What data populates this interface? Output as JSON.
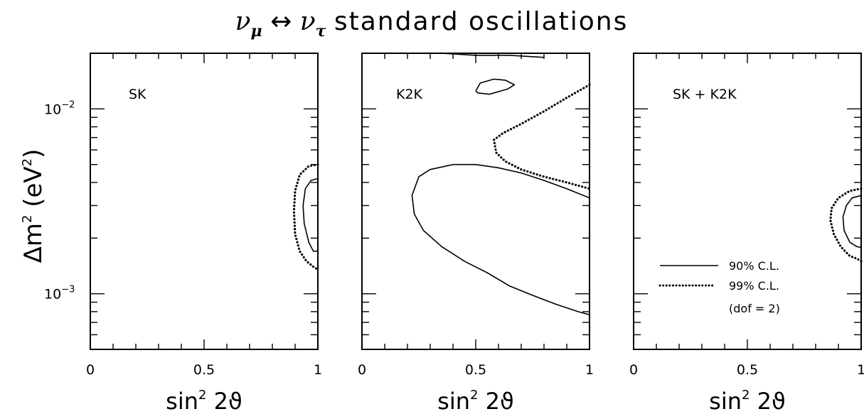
{
  "title": {
    "nu1": "ν",
    "sub1": "μ",
    "arrow": "↔",
    "nu2": "ν",
    "sub2": "τ",
    "rest": "standard oscillations"
  },
  "ylabel": {
    "delta": "Δm",
    "sup": "2",
    "unit_open": " (eV",
    "unit_sup": "2",
    "unit_close": ")"
  },
  "xlabel": {
    "base": "sin",
    "sup": "2",
    "arg": "2ϑ"
  },
  "legend": {
    "solid": "90% C.L.",
    "dotted": "99% C.L.",
    "note": "(dof = 2)"
  },
  "chart_data": [
    {
      "type": "line",
      "panel_label": "SK",
      "x_ticks": [
        "0",
        "0.5",
        "1"
      ],
      "y_tick_labels": [
        {
          "base": "10",
          "exp": "−2",
          "value": 0.01
        },
        {
          "base": "10",
          "exp": "−3",
          "value": 0.001
        }
      ],
      "xlim": [
        0,
        1
      ],
      "ylim": [
        0.0005,
        0.02
      ],
      "yscale": "log",
      "series": [
        {
          "style": "solid",
          "x": [
            1.0,
            0.97,
            0.945,
            0.935,
            0.94,
            0.96,
            0.98,
            1.0
          ],
          "y": [
            0.0042,
            0.0041,
            0.0037,
            0.003,
            0.0024,
            0.0019,
            0.0017,
            0.0017
          ]
        },
        {
          "style": "dotted",
          "x": [
            1.0,
            0.96,
            0.92,
            0.9,
            0.895,
            0.9,
            0.92,
            0.95,
            0.98,
            1.0
          ],
          "y": [
            0.005,
            0.0049,
            0.0044,
            0.0036,
            0.0028,
            0.0021,
            0.0017,
            0.0015,
            0.0014,
            0.00135
          ]
        }
      ]
    },
    {
      "type": "line",
      "panel_label": "K2K",
      "x_ticks": [
        "0",
        "0.5",
        "1"
      ],
      "xlim": [
        0,
        1
      ],
      "ylim": [
        0.0005,
        0.02
      ],
      "yscale": "log",
      "series": [
        {
          "style": "solid",
          "x": [
            0.35,
            0.5,
            0.65,
            0.8
          ],
          "y": [
            0.02,
            0.0195,
            0.0195,
            0.019
          ]
        },
        {
          "style": "solid",
          "x": [
            0.5,
            0.52,
            0.58,
            0.63,
            0.67,
            0.64,
            0.56,
            0.51,
            0.5
          ],
          "y": [
            0.0125,
            0.0138,
            0.0145,
            0.0143,
            0.0135,
            0.0128,
            0.012,
            0.0122,
            0.0125
          ]
        },
        {
          "style": "dotted",
          "x": [
            1.0,
            0.9,
            0.8,
            0.7,
            0.62,
            0.58,
            0.59,
            0.63,
            0.7,
            0.8,
            0.9,
            1.0
          ],
          "y": [
            0.0135,
            0.0115,
            0.0097,
            0.0083,
            0.0074,
            0.0068,
            0.0058,
            0.0052,
            0.0047,
            0.0043,
            0.004,
            0.0037
          ]
        },
        {
          "style": "solid",
          "x": [
            1.0,
            0.9,
            0.8,
            0.7,
            0.6,
            0.5,
            0.4,
            0.3,
            0.25,
            0.22,
            0.23,
            0.27,
            0.35,
            0.45,
            0.55,
            0.65,
            0.75,
            0.85,
            0.95,
            1.0
          ],
          "y": [
            0.0033,
            0.0037,
            0.0041,
            0.0045,
            0.0048,
            0.005,
            0.005,
            0.0047,
            0.0043,
            0.0034,
            0.0027,
            0.0022,
            0.0018,
            0.0015,
            0.0013,
            0.0011,
            0.00098,
            0.00088,
            0.0008,
            0.00077
          ]
        }
      ]
    },
    {
      "type": "line",
      "panel_label": "SK + K2K",
      "x_ticks": [
        "0",
        "0.5",
        "1"
      ],
      "xlim": [
        0,
        1
      ],
      "ylim": [
        0.0005,
        0.02
      ],
      "yscale": "log",
      "series": [
        {
          "style": "solid",
          "x": [
            1.0,
            0.96,
            0.935,
            0.92,
            0.925,
            0.95,
            0.98,
            1.0
          ],
          "y": [
            0.0034,
            0.0033,
            0.003,
            0.0026,
            0.0022,
            0.0019,
            0.0018,
            0.00178
          ]
        },
        {
          "style": "dotted",
          "x": [
            1.0,
            0.95,
            0.9,
            0.87,
            0.865,
            0.88,
            0.91,
            0.95,
            0.98,
            1.0
          ],
          "y": [
            0.0037,
            0.0036,
            0.0033,
            0.0029,
            0.0025,
            0.0021,
            0.0018,
            0.0016,
            0.00155,
            0.0015
          ]
        }
      ]
    }
  ]
}
